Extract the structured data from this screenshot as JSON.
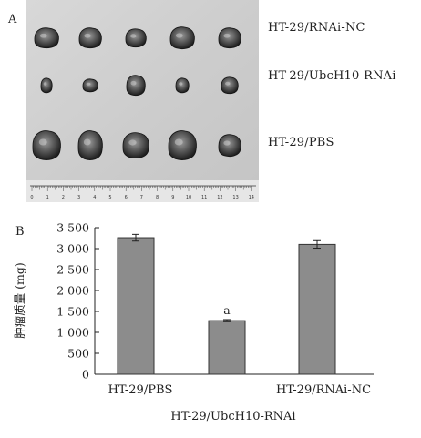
{
  "panel_a": {
    "letter": "A",
    "rows": [
      {
        "label": "HT-29/RNAi-NC",
        "count": 5,
        "size": "large"
      },
      {
        "label": "HT-29/UbcH10-RNAi",
        "count": 5,
        "size": "small"
      },
      {
        "label": "HT-29/PBS",
        "count": 5,
        "size": "large"
      }
    ],
    "ruler_marks": [
      "0",
      "1",
      "2",
      "3",
      "4",
      "5",
      "6",
      "7",
      "8",
      "9",
      "10",
      "11",
      "12",
      "13",
      "14"
    ]
  },
  "panel_b": {
    "letter": "B",
    "ylabel": "肿瘤质量 (mg)",
    "significance_label": "a",
    "tick_labels": [
      "0",
      "500",
      "1 000",
      "1 500",
      "2 000",
      "2 500",
      "3 000",
      "3 500"
    ]
  },
  "chart_data": {
    "type": "bar",
    "categories": [
      "HT-29/PBS",
      "HT-29/UbcH10-RNAi",
      "HT-29/RNAi-NC"
    ],
    "values": [
      3260,
      1280,
      3100
    ],
    "errors": [
      80,
      25,
      90
    ],
    "ylabel": "肿瘤质量 (mg)",
    "ylim": [
      0,
      3500
    ],
    "yticks": [
      0,
      500,
      1000,
      1500,
      2000,
      2500,
      3000,
      3500
    ],
    "grid": false,
    "bar_color": "#8c8c8c"
  }
}
